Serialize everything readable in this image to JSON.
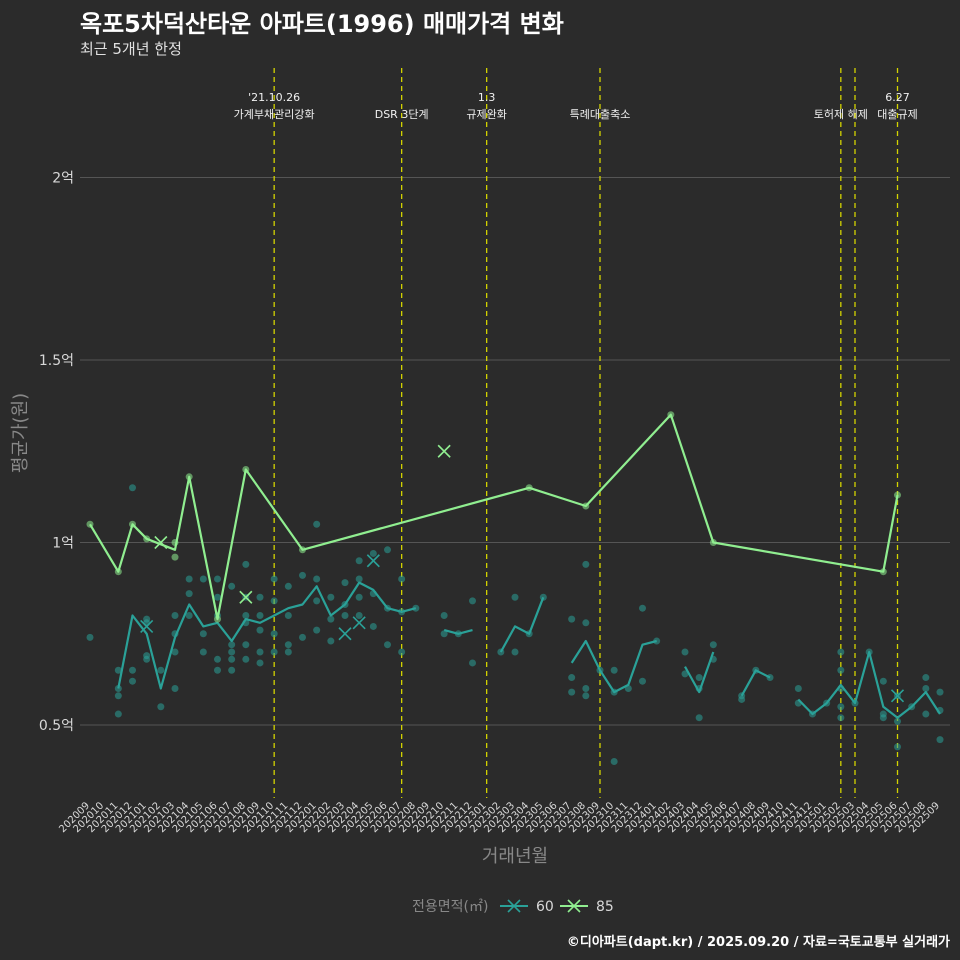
{
  "title": "옥포5차덕산타운 아파트(1996) 매매가격 변화",
  "subtitle": "최근 5개년 한정",
  "footer": "©디아파트(dapt.kr) / 2025.09.20 / 자료=국토교통부 실거래가",
  "colors": {
    "background": "#2b2b2b",
    "grid": "#555555",
    "series60": "#2aa198",
    "series85": "#90ee90",
    "vline": "#d4d400",
    "axisText": "#d8d8d8",
    "axisTitle": "#888888"
  },
  "chart_data": {
    "type": "line",
    "title": "옥포5차덕산타운 아파트(1996) 매매가격 변화",
    "subtitle": "최근 5개년 한정",
    "xlabel": "거래년월",
    "ylabel": "평균가(원)",
    "ylim": [
      0.3,
      2.3
    ],
    "yticks": [
      {
        "value": 0.5,
        "label": "0.5억"
      },
      {
        "value": 1.0,
        "label": "1억"
      },
      {
        "value": 1.5,
        "label": "1.5억"
      },
      {
        "value": 2.0,
        "label": "2억"
      }
    ],
    "categories": [
      "202009",
      "202010",
      "202011",
      "202012",
      "202101",
      "202102",
      "202103",
      "202104",
      "202105",
      "202106",
      "202107",
      "202108",
      "202109",
      "202110",
      "202111",
      "202112",
      "202201",
      "202202",
      "202203",
      "202204",
      "202205",
      "202206",
      "202207",
      "202208",
      "202209",
      "202210",
      "202211",
      "202212",
      "202301",
      "202302",
      "202303",
      "202304",
      "202305",
      "202306",
      "202307",
      "202308",
      "202309",
      "202310",
      "202311",
      "202312",
      "202401",
      "202402",
      "202403",
      "202404",
      "202405",
      "202406",
      "202407",
      "202408",
      "202409",
      "202410",
      "202411",
      "202412",
      "202501",
      "202502",
      "202503",
      "202504",
      "202505",
      "202506",
      "202507",
      "202508",
      "202509"
    ],
    "legend": {
      "title": "전용면적(㎡)",
      "position": "bottom",
      "entries": [
        {
          "name": "60",
          "color": "#2aa198"
        },
        {
          "name": "85",
          "color": "#90ee90"
        }
      ]
    },
    "annotations": [
      {
        "x": "202110",
        "lines": [
          "'21.10.26",
          "가계부채관리강화"
        ]
      },
      {
        "x": "202207",
        "lines": [
          "DSR 3단계"
        ]
      },
      {
        "x": "202301",
        "lines": [
          "1.3",
          "규제완화"
        ]
      },
      {
        "x": "202309",
        "lines": [
          "특례대출축소"
        ]
      },
      {
        "x": "202502",
        "lines": [
          "토허제 해제"
        ]
      },
      {
        "x": "202503",
        "lines": []
      },
      {
        "x": "202506",
        "lines": [
          "6.27",
          "대출규제"
        ]
      }
    ],
    "series": [
      {
        "name": "60",
        "color": "#2aa198",
        "lines": [
          [
            [
              "202011",
              0.6
            ],
            [
              "202012",
              0.8
            ],
            [
              "202101",
              0.75
            ],
            [
              "202102",
              0.6
            ],
            [
              "202103",
              0.74
            ],
            [
              "202104",
              0.83
            ],
            [
              "202105",
              0.77
            ],
            [
              "202106",
              0.78
            ],
            [
              "202107",
              0.73
            ],
            [
              "202108",
              0.79
            ],
            [
              "202109",
              0.78
            ],
            [
              "202110",
              0.8
            ],
            [
              "202111",
              0.82
            ],
            [
              "202112",
              0.83
            ],
            [
              "202201",
              0.88
            ],
            [
              "202202",
              0.8
            ],
            [
              "202203",
              0.83
            ],
            [
              "202204",
              0.89
            ],
            [
              "202205",
              0.87
            ],
            [
              "202206",
              0.82
            ],
            [
              "202207",
              0.81
            ],
            [
              "202208",
              0.82
            ]
          ],
          [
            [
              "202210",
              0.76
            ],
            [
              "202211",
              0.75
            ],
            [
              "202212",
              0.76
            ]
          ],
          [
            [
              "202302",
              0.7
            ],
            [
              "202303",
              0.77
            ],
            [
              "202304",
              0.75
            ],
            [
              "202305",
              0.85
            ]
          ],
          [
            [
              "202307",
              0.67
            ],
            [
              "202308",
              0.73
            ],
            [
              "202309",
              0.65
            ],
            [
              "202310",
              0.59
            ],
            [
              "202311",
              0.61
            ],
            [
              "202312",
              0.72
            ],
            [
              "202401",
              0.73
            ]
          ],
          [
            [
              "202403",
              0.66
            ],
            [
              "202404",
              0.59
            ],
            [
              "202405",
              0.7
            ]
          ],
          [
            [
              "202407",
              0.58
            ],
            [
              "202408",
              0.65
            ],
            [
              "202409",
              0.63
            ]
          ],
          [
            [
              "202411",
              0.57
            ],
            [
              "202412",
              0.53
            ],
            [
              "202501",
              0.56
            ],
            [
              "202502",
              0.61
            ],
            [
              "202503",
              0.56
            ],
            [
              "202504",
              0.7
            ],
            [
              "202505",
              0.55
            ],
            [
              "202506",
              0.52
            ],
            [
              "202507",
              0.55
            ],
            [
              "202508",
              0.59
            ],
            [
              "202509",
              0.53
            ]
          ]
        ],
        "points": [
          [
            "202009",
            0.74
          ],
          [
            "202011",
            0.6
          ],
          [
            "202011",
            0.58
          ],
          [
            "202011",
            0.53
          ],
          [
            "202011",
            0.65
          ],
          [
            "202012",
            0.65
          ],
          [
            "202012",
            0.62
          ],
          [
            "202012",
            1.15
          ],
          [
            "202101",
            0.69
          ],
          [
            "202101",
            0.68
          ],
          [
            "202101",
            0.78
          ],
          [
            "202101",
            0.79
          ],
          [
            "202102",
            0.55
          ],
          [
            "202102",
            0.65
          ],
          [
            "202103",
            0.6
          ],
          [
            "202103",
            0.7
          ],
          [
            "202103",
            0.75
          ],
          [
            "202103",
            0.8
          ],
          [
            "202104",
            0.9
          ],
          [
            "202104",
            0.86
          ],
          [
            "202104",
            0.8
          ],
          [
            "202105",
            0.9
          ],
          [
            "202105",
            0.75
          ],
          [
            "202105",
            0.7
          ],
          [
            "202106",
            0.9
          ],
          [
            "202106",
            0.85
          ],
          [
            "202106",
            0.8
          ],
          [
            "202106",
            0.68
          ],
          [
            "202106",
            0.65
          ],
          [
            "202107",
            0.72
          ],
          [
            "202107",
            0.7
          ],
          [
            "202107",
            0.68
          ],
          [
            "202107",
            0.65
          ],
          [
            "202107",
            0.88
          ],
          [
            "202108",
            0.94
          ],
          [
            "202108",
            0.85
          ],
          [
            "202108",
            0.8
          ],
          [
            "202108",
            0.78
          ],
          [
            "202108",
            0.72
          ],
          [
            "202108",
            0.68
          ],
          [
            "202109",
            0.85
          ],
          [
            "202109",
            0.8
          ],
          [
            "202109",
            0.76
          ],
          [
            "202109",
            0.7
          ],
          [
            "202109",
            0.67
          ],
          [
            "202110",
            0.9
          ],
          [
            "202110",
            0.84
          ],
          [
            "202110",
            0.75
          ],
          [
            "202110",
            0.7
          ],
          [
            "202111",
            0.88
          ],
          [
            "202111",
            0.8
          ],
          [
            "202111",
            0.72
          ],
          [
            "202111",
            0.7
          ],
          [
            "202112",
            0.91
          ],
          [
            "202112",
            0.74
          ],
          [
            "202201",
            1.05
          ],
          [
            "202201",
            0.9
          ],
          [
            "202201",
            0.84
          ],
          [
            "202201",
            0.76
          ],
          [
            "202202",
            0.85
          ],
          [
            "202202",
            0.79
          ],
          [
            "202202",
            0.73
          ],
          [
            "202203",
            0.89
          ],
          [
            "202203",
            0.83
          ],
          [
            "202203",
            0.8
          ],
          [
            "202204",
            0.95
          ],
          [
            "202204",
            0.9
          ],
          [
            "202204",
            0.85
          ],
          [
            "202204",
            0.8
          ],
          [
            "202205",
            0.97
          ],
          [
            "202205",
            0.86
          ],
          [
            "202205",
            0.77
          ],
          [
            "202206",
            0.98
          ],
          [
            "202206",
            0.82
          ],
          [
            "202206",
            0.72
          ],
          [
            "202207",
            0.9
          ],
          [
            "202207",
            0.81
          ],
          [
            "202207",
            0.7
          ],
          [
            "202208",
            0.82
          ],
          [
            "202210",
            0.8
          ],
          [
            "202210",
            0.75
          ],
          [
            "202211",
            0.75
          ],
          [
            "202212",
            0.84
          ],
          [
            "202212",
            0.67
          ],
          [
            "202302",
            0.7
          ],
          [
            "202303",
            0.85
          ],
          [
            "202303",
            0.7
          ],
          [
            "202304",
            0.75
          ],
          [
            "202305",
            0.85
          ],
          [
            "202307",
            0.79
          ],
          [
            "202307",
            0.63
          ],
          [
            "202307",
            0.59
          ],
          [
            "202308",
            0.94
          ],
          [
            "202308",
            0.78
          ],
          [
            "202308",
            0.6
          ],
          [
            "202308",
            0.58
          ],
          [
            "202309",
            0.65
          ],
          [
            "202310",
            0.65
          ],
          [
            "202310",
            0.59
          ],
          [
            "202310",
            0.4
          ],
          [
            "202311",
            0.6
          ],
          [
            "202312",
            0.82
          ],
          [
            "202312",
            0.62
          ],
          [
            "202401",
            0.73
          ],
          [
            "202403",
            0.7
          ],
          [
            "202403",
            0.64
          ],
          [
            "202404",
            0.63
          ],
          [
            "202404",
            0.6
          ],
          [
            "202404",
            0.52
          ],
          [
            "202405",
            0.72
          ],
          [
            "202405",
            0.68
          ],
          [
            "202407",
            0.58
          ],
          [
            "202407",
            0.57
          ],
          [
            "202408",
            0.65
          ],
          [
            "202409",
            0.63
          ],
          [
            "202411",
            0.6
          ],
          [
            "202411",
            0.56
          ],
          [
            "202412",
            0.53
          ],
          [
            "202501",
            0.56
          ],
          [
            "202502",
            0.7
          ],
          [
            "202502",
            0.65
          ],
          [
            "202502",
            0.6
          ],
          [
            "202502",
            0.55
          ],
          [
            "202502",
            0.52
          ],
          [
            "202503",
            0.56
          ],
          [
            "202504",
            0.7
          ],
          [
            "202505",
            0.62
          ],
          [
            "202505",
            0.53
          ],
          [
            "202505",
            0.52
          ],
          [
            "202506",
            0.58
          ],
          [
            "202506",
            0.51
          ],
          [
            "202506",
            0.44
          ],
          [
            "202507",
            0.55
          ],
          [
            "202508",
            0.63
          ],
          [
            "202508",
            0.6
          ],
          [
            "202508",
            0.53
          ],
          [
            "202509",
            0.59
          ],
          [
            "202509",
            0.54
          ],
          [
            "202509",
            0.46
          ]
        ],
        "cancelled": [
          [
            "202101",
            0.77
          ],
          [
            "202203",
            0.75
          ],
          [
            "202204",
            0.78
          ],
          [
            "202205",
            0.95
          ],
          [
            "202506",
            0.58
          ]
        ]
      },
      {
        "name": "85",
        "color": "#90ee90",
        "lines": [
          [
            [
              "202009",
              1.05
            ],
            [
              "202011",
              0.92
            ],
            [
              "202012",
              1.05
            ],
            [
              "202101",
              1.01
            ],
            [
              "202103",
              0.98
            ],
            [
              "202104",
              1.18
            ],
            [
              "202106",
              0.79
            ],
            [
              "202108",
              1.2
            ],
            [
              "202112",
              0.98
            ],
            [
              "202304",
              1.15
            ],
            [
              "202308",
              1.1
            ],
            [
              "202402",
              1.35
            ],
            [
              "202405",
              1.0
            ],
            [
              "202505",
              0.92
            ],
            [
              "202506",
              1.13
            ]
          ]
        ],
        "points": [
          [
            "202009",
            1.05
          ],
          [
            "202011",
            0.92
          ],
          [
            "202012",
            1.05
          ],
          [
            "202101",
            1.01
          ],
          [
            "202103",
            1.0
          ],
          [
            "202103",
            0.96
          ],
          [
            "202104",
            1.18
          ],
          [
            "202106",
            0.79
          ],
          [
            "202108",
            1.2
          ],
          [
            "202112",
            0.98
          ],
          [
            "202304",
            1.15
          ],
          [
            "202308",
            1.1
          ],
          [
            "202402",
            1.35
          ],
          [
            "202405",
            1.0
          ],
          [
            "202505",
            0.92
          ],
          [
            "202506",
            1.13
          ]
        ],
        "cancelled": [
          [
            "202102",
            1.0
          ],
          [
            "202108",
            0.85
          ],
          [
            "202210",
            1.25
          ]
        ]
      }
    ]
  }
}
